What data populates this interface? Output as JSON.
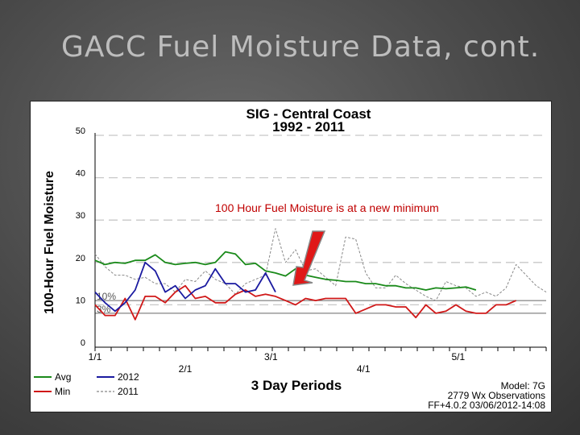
{
  "slide": {
    "title": "GACC Fuel Moisture Data, cont."
  },
  "chart_data": {
    "type": "line",
    "title": "SIG - Central Coast",
    "subtitle": "1992 - 2011",
    "xlabel": "3 Day Periods",
    "ylabel": "100-Hour Fuel Moisture",
    "ylim": [
      0,
      50
    ],
    "y_ticks": [
      0,
      10,
      20,
      30,
      40,
      50
    ],
    "x_tick_labels": [
      "1/1",
      "2/1",
      "3/1",
      "4/1",
      "5/1"
    ],
    "grid": "dashed horizontal",
    "threshold_lines": [
      {
        "label": "10%",
        "value": 11.0
      },
      {
        "label": "3%",
        "value": 8.0
      }
    ],
    "annotation": "100 Hour Fuel Moisture is at a new minimum",
    "legend": [
      {
        "name": "Avg",
        "color": "#1a8a1a"
      },
      {
        "name": "2012",
        "color": "#1a1aa0"
      },
      {
        "name": "Min",
        "color": "#d01818"
      },
      {
        "name": "2011",
        "color": "#888888"
      }
    ],
    "info": {
      "model": "Model: 7G",
      "observations": "2779 Wx Observations",
      "version": "FF+4.0.2 03/06/2012-14:08"
    },
    "series": [
      {
        "name": "Avg",
        "color": "#1a8a1a",
        "values": [
          20.5,
          19.5,
          20.0,
          19.8,
          20.5,
          20.5,
          21.8,
          20.0,
          19.5,
          19.8,
          20.0,
          19.5,
          20.0,
          22.5,
          22.0,
          19.5,
          19.8,
          18.0,
          17.5,
          16.8,
          18.5,
          17.0,
          16.5,
          16.0,
          15.8,
          15.5,
          15.5,
          15.0,
          15.0,
          14.5,
          14.5,
          14.0,
          14.0,
          13.5,
          14.0,
          13.8,
          14.0,
          14.2,
          13.5
        ]
      },
      {
        "name": "2012",
        "color": "#1a1aa0",
        "values": [
          13.0,
          10.5,
          8.5,
          10.5,
          13.5,
          20.0,
          18.0,
          13.0,
          14.5,
          11.5,
          13.5,
          14.5,
          18.5,
          15.0,
          15.0,
          13.0,
          13.5,
          17.5,
          13.0
        ]
      },
      {
        "name": "Min",
        "color": "#d01818",
        "values": [
          10.0,
          7.5,
          7.5,
          11.5,
          6.5,
          12.0,
          12.0,
          10.5,
          13.0,
          14.5,
          11.5,
          12.0,
          10.5,
          10.5,
          12.5,
          13.5,
          12.0,
          12.5,
          12.0,
          11.0,
          10.0,
          11.5,
          11.0,
          11.5,
          11.5,
          11.5,
          8.0,
          9.0,
          10.0,
          10.0,
          9.5,
          9.5,
          7.0,
          10.0,
          8.0,
          8.5,
          10.0,
          8.5,
          8.0,
          8.0,
          10.0,
          10.0,
          11.0
        ]
      },
      {
        "name": "2011",
        "color": "#888888",
        "values": [
          22.0,
          19.0,
          17.0,
          17.0,
          16.0,
          16.5,
          15.0,
          15.0,
          13.0,
          16.0,
          15.5,
          18.0,
          16.0,
          15.0,
          12.5,
          15.0,
          16.0,
          17.0,
          28.0,
          20.0,
          23.0,
          18.0,
          18.5,
          16.5,
          14.5,
          26.0,
          25.5,
          17.5,
          14.0,
          14.0,
          17.0,
          15.0,
          13.5,
          12.0,
          11.0,
          15.5,
          14.5,
          14.0,
          12.0,
          13.0,
          12.0,
          14.0,
          19.5,
          17.0,
          14.5,
          13.0
        ]
      }
    ]
  }
}
